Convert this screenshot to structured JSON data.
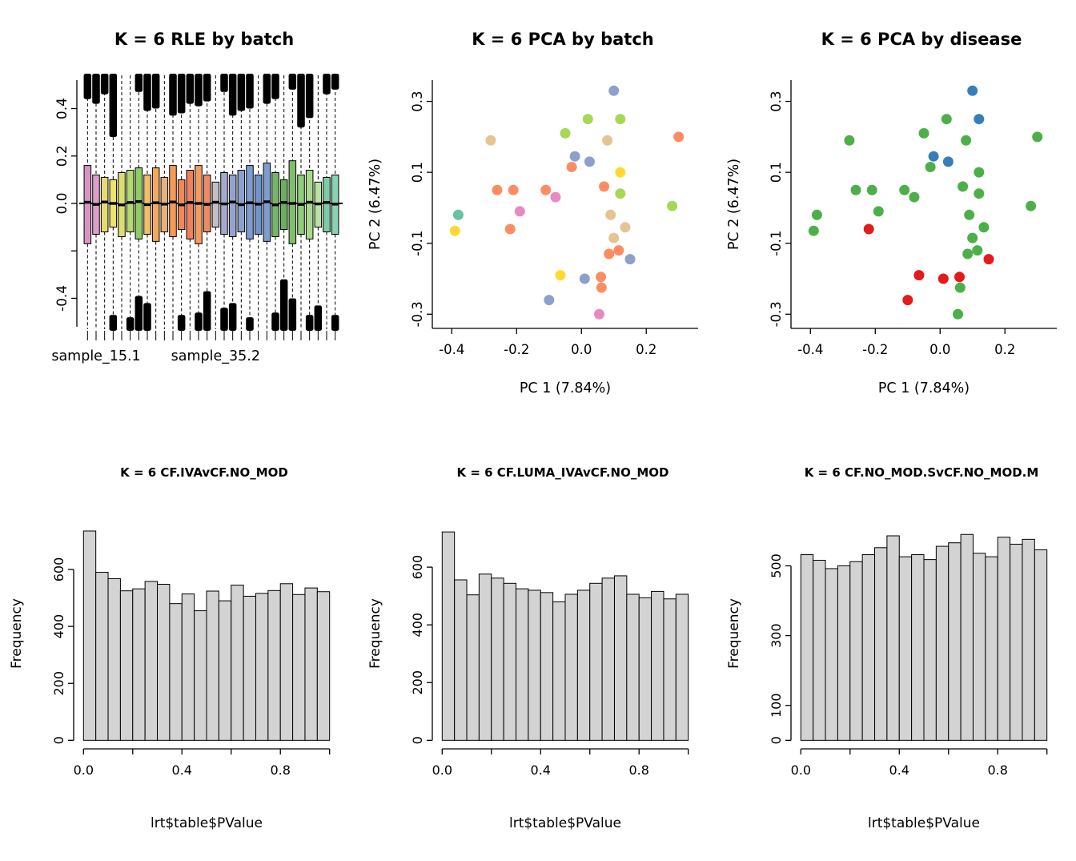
{
  "page_background": "#ffffff",
  "chart_data": [
    {
      "type": "boxplot",
      "title": "K = 6 RLE by batch",
      "ylabel": "",
      "ylim": [
        -0.52,
        0.52
      ],
      "y_ticks": [
        {
          "v": -0.4,
          "l": "-0.4"
        },
        {
          "v": -0.2,
          "l": ""
        },
        {
          "v": 0.0,
          "l": "0.0"
        },
        {
          "v": 0.2,
          "l": "0.2"
        },
        {
          "v": 0.4,
          "l": "0.4"
        }
      ],
      "x_labels": [
        {
          "i": 1,
          "t": "sample_15.1"
        },
        {
          "i": 15,
          "t": "sample_35.2"
        }
      ],
      "zero_line": true,
      "boxes": [
        {
          "q1": -0.17,
          "q3": 0.16,
          "m": 0.005,
          "c": "#D795C3",
          "ot": 0.08,
          "ob": 0
        },
        {
          "q1": -0.13,
          "q3": 0.12,
          "m": -0.004,
          "c": "#DB9FC9",
          "ot": 0.1,
          "ob": 0
        },
        {
          "q1": -0.12,
          "q3": 0.11,
          "m": 0.006,
          "c": "#E4DB72",
          "ot": 0.06,
          "ob": 0
        },
        {
          "q1": -0.1,
          "q3": 0.1,
          "m": 0.0,
          "c": "#EDE26B",
          "ot": 0.24,
          "ob": 0.05
        },
        {
          "q1": -0.14,
          "q3": 0.13,
          "m": -0.006,
          "c": "#DCDE6E",
          "ot": 0,
          "ob": 0
        },
        {
          "q1": -0.12,
          "q3": 0.14,
          "m": 0.004,
          "c": "#B5D96C",
          "ot": 0,
          "ob": 0.04
        },
        {
          "q1": -0.15,
          "q3": 0.15,
          "m": 0.008,
          "c": "#8FCD63",
          "ot": 0.05,
          "ob": 0.13
        },
        {
          "q1": -0.13,
          "q3": 0.12,
          "m": -0.005,
          "c": "#EFC06A",
          "ot": 0.13,
          "ob": 0.1
        },
        {
          "q1": -0.16,
          "q3": 0.15,
          "m": 0.003,
          "c": "#F2A95C",
          "ot": 0.12,
          "ob": 0
        },
        {
          "q1": -0.12,
          "q3": 0.11,
          "m": -0.003,
          "c": "#E8B07C",
          "ot": 0,
          "ob": 0
        },
        {
          "q1": -0.14,
          "q3": 0.16,
          "m": 0.006,
          "c": "#F59B55",
          "ot": 0.15,
          "ob": 0
        },
        {
          "q1": -0.11,
          "q3": 0.1,
          "m": -0.006,
          "c": "#F4875A",
          "ot": 0.14,
          "ob": 0.05
        },
        {
          "q1": -0.15,
          "q3": 0.14,
          "m": 0.004,
          "c": "#F07F5C",
          "ot": 0.1,
          "ob": 0
        },
        {
          "q1": -0.17,
          "q3": 0.16,
          "m": 0.0,
          "c": "#F59B60",
          "ot": 0.11,
          "ob": 0.06
        },
        {
          "q1": -0.12,
          "q3": 0.12,
          "m": -0.004,
          "c": "#EF8A64",
          "ot": 0.09,
          "ob": 0.15
        },
        {
          "q1": -0.1,
          "q3": 0.09,
          "m": 0.005,
          "c": "#C2BFC7",
          "ot": 0,
          "ob": 0
        },
        {
          "q1": -0.13,
          "q3": 0.13,
          "m": -0.002,
          "c": "#A3AACB",
          "ot": 0.05,
          "ob": 0.08
        },
        {
          "q1": -0.14,
          "q3": 0.12,
          "m": 0.006,
          "c": "#95A3CC",
          "ot": 0.15,
          "ob": 0.1
        },
        {
          "q1": -0.12,
          "q3": 0.14,
          "m": -0.005,
          "c": "#8AA0CF",
          "ot": 0.13,
          "ob": 0
        },
        {
          "q1": -0.15,
          "q3": 0.16,
          "m": 0.003,
          "c": "#7C9CD2",
          "ot": 0.12,
          "ob": 0.04
        },
        {
          "q1": -0.13,
          "q3": 0.12,
          "m": -0.003,
          "c": "#6E94CE",
          "ot": 0,
          "ob": 0
        },
        {
          "q1": -0.16,
          "q3": 0.17,
          "m": 0.007,
          "c": "#7C9CD2",
          "ot": 0.1,
          "ob": 0
        },
        {
          "q1": -0.14,
          "q3": 0.13,
          "m": -0.006,
          "c": "#77B56B",
          "ot": 0.08,
          "ob": 0.06
        },
        {
          "q1": -0.11,
          "q3": 0.1,
          "m": 0.004,
          "c": "#6BAE5F",
          "ot": 0,
          "ob": 0.2
        },
        {
          "q1": -0.17,
          "q3": 0.18,
          "m": 0.0,
          "c": "#7FBE6C",
          "ot": 0.04,
          "ob": 0.12
        },
        {
          "q1": -0.13,
          "q3": 0.12,
          "m": -0.004,
          "c": "#8FCD7A",
          "ot": 0.2,
          "ob": 0
        },
        {
          "q1": -0.15,
          "q3": 0.14,
          "m": 0.005,
          "c": "#A8D98C",
          "ot": 0.16,
          "ob": 0.05
        },
        {
          "q1": -0.1,
          "q3": 0.09,
          "m": -0.002,
          "c": "#B9E3A0",
          "ot": 0,
          "ob": 0.09
        },
        {
          "q1": -0.12,
          "q3": 0.11,
          "m": 0.004,
          "c": "#7ECBA8",
          "ot": 0.06,
          "ob": 0
        },
        {
          "q1": -0.13,
          "q3": 0.12,
          "m": -0.003,
          "c": "#8AD2B3",
          "ot": 0.04,
          "ob": 0.05
        }
      ]
    },
    {
      "type": "scatter",
      "title": "K = 6 PCA by batch",
      "xlabel": "PC 1 (7.84%)",
      "ylabel": "PC 2 (6.47%)",
      "xlim": [
        -0.46,
        0.36
      ],
      "ylim": [
        -0.34,
        0.36
      ],
      "x_ticks": [
        {
          "v": -0.4,
          "l": "-0.4"
        },
        {
          "v": -0.2,
          "l": "-0.2"
        },
        {
          "v": 0.0,
          "l": "0.0"
        },
        {
          "v": 0.2,
          "l": "0.2"
        }
      ],
      "y_ticks": [
        {
          "v": -0.3,
          "l": "-0.3"
        },
        {
          "v": -0.1,
          "l": "-0.1"
        },
        {
          "v": 0.1,
          "l": "0.1"
        },
        {
          "v": 0.3,
          "l": "0.3"
        }
      ],
      "points": [
        {
          "x": 0.1,
          "y": 0.33,
          "c": "#8DA0CB"
        },
        {
          "x": 0.02,
          "y": 0.25,
          "c": "#A6D854"
        },
        {
          "x": 0.12,
          "y": 0.25,
          "c": "#A6D854"
        },
        {
          "x": -0.05,
          "y": 0.21,
          "c": "#A6D854"
        },
        {
          "x": -0.28,
          "y": 0.19,
          "c": "#E5C494"
        },
        {
          "x": 0.3,
          "y": 0.2,
          "c": "#FC8D62"
        },
        {
          "x": 0.08,
          "y": 0.19,
          "c": "#E5C494"
        },
        {
          "x": -0.02,
          "y": 0.145,
          "c": "#8DA0CB"
        },
        {
          "x": 0.025,
          "y": 0.13,
          "c": "#8DA0CB"
        },
        {
          "x": 0.12,
          "y": 0.1,
          "c": "#FFD92F"
        },
        {
          "x": -0.03,
          "y": 0.115,
          "c": "#FC8D62"
        },
        {
          "x": -0.26,
          "y": 0.05,
          "c": "#FC8D62"
        },
        {
          "x": -0.21,
          "y": 0.05,
          "c": "#FC8D62"
        },
        {
          "x": -0.11,
          "y": 0.05,
          "c": "#FC8D62"
        },
        {
          "x": 0.07,
          "y": 0.06,
          "c": "#FC8D62"
        },
        {
          "x": 0.12,
          "y": 0.04,
          "c": "#A6D854"
        },
        {
          "x": -0.08,
          "y": 0.03,
          "c": "#E78AC3"
        },
        {
          "x": 0.28,
          "y": 0.005,
          "c": "#A6D854"
        },
        {
          "x": -0.38,
          "y": -0.02,
          "c": "#66C2A5"
        },
        {
          "x": -0.19,
          "y": -0.01,
          "c": "#E78AC3"
        },
        {
          "x": -0.39,
          "y": -0.065,
          "c": "#FFD92F"
        },
        {
          "x": -0.22,
          "y": -0.06,
          "c": "#FC8D62"
        },
        {
          "x": 0.09,
          "y": -0.02,
          "c": "#E5C494"
        },
        {
          "x": 0.135,
          "y": -0.055,
          "c": "#E5C494"
        },
        {
          "x": 0.1,
          "y": -0.085,
          "c": "#E5C494"
        },
        {
          "x": 0.085,
          "y": -0.13,
          "c": "#FC8D62"
        },
        {
          "x": 0.115,
          "y": -0.12,
          "c": "#FC8D62"
        },
        {
          "x": 0.15,
          "y": -0.145,
          "c": "#8DA0CB"
        },
        {
          "x": -0.065,
          "y": -0.19,
          "c": "#FFD92F"
        },
        {
          "x": 0.01,
          "y": -0.2,
          "c": "#8DA0CB"
        },
        {
          "x": 0.06,
          "y": -0.195,
          "c": "#FC8D62"
        },
        {
          "x": 0.062,
          "y": -0.225,
          "c": "#FC8D62"
        },
        {
          "x": -0.1,
          "y": -0.26,
          "c": "#8DA0CB"
        },
        {
          "x": 0.055,
          "y": -0.3,
          "c": "#E78AC3"
        }
      ]
    },
    {
      "type": "scatter",
      "title": "K = 6 PCA by disease",
      "xlabel": "PC 1 (7.84%)",
      "ylabel": "PC 2 (6.47%)",
      "xlim": [
        -0.46,
        0.36
      ],
      "ylim": [
        -0.34,
        0.36
      ],
      "x_ticks": [
        {
          "v": -0.4,
          "l": "-0.4"
        },
        {
          "v": -0.2,
          "l": "-0.2"
        },
        {
          "v": 0.0,
          "l": "0.0"
        },
        {
          "v": 0.2,
          "l": "0.2"
        }
      ],
      "y_ticks": [
        {
          "v": -0.3,
          "l": "-0.3"
        },
        {
          "v": -0.1,
          "l": "-0.1"
        },
        {
          "v": 0.1,
          "l": "0.1"
        },
        {
          "v": 0.3,
          "l": "0.3"
        }
      ],
      "points": [
        {
          "x": 0.1,
          "y": 0.33,
          "c": "#377EB8"
        },
        {
          "x": 0.02,
          "y": 0.25,
          "c": "#4DAF4A"
        },
        {
          "x": 0.12,
          "y": 0.25,
          "c": "#377EB8"
        },
        {
          "x": -0.05,
          "y": 0.21,
          "c": "#4DAF4A"
        },
        {
          "x": -0.28,
          "y": 0.19,
          "c": "#4DAF4A"
        },
        {
          "x": 0.3,
          "y": 0.2,
          "c": "#4DAF4A"
        },
        {
          "x": 0.08,
          "y": 0.19,
          "c": "#4DAF4A"
        },
        {
          "x": -0.02,
          "y": 0.145,
          "c": "#377EB8"
        },
        {
          "x": 0.025,
          "y": 0.13,
          "c": "#377EB8"
        },
        {
          "x": 0.12,
          "y": 0.1,
          "c": "#4DAF4A"
        },
        {
          "x": -0.03,
          "y": 0.115,
          "c": "#4DAF4A"
        },
        {
          "x": -0.26,
          "y": 0.05,
          "c": "#4DAF4A"
        },
        {
          "x": -0.21,
          "y": 0.05,
          "c": "#4DAF4A"
        },
        {
          "x": -0.11,
          "y": 0.05,
          "c": "#4DAF4A"
        },
        {
          "x": 0.07,
          "y": 0.06,
          "c": "#4DAF4A"
        },
        {
          "x": 0.12,
          "y": 0.04,
          "c": "#4DAF4A"
        },
        {
          "x": -0.08,
          "y": 0.03,
          "c": "#4DAF4A"
        },
        {
          "x": 0.28,
          "y": 0.005,
          "c": "#4DAF4A"
        },
        {
          "x": -0.38,
          "y": -0.02,
          "c": "#4DAF4A"
        },
        {
          "x": -0.19,
          "y": -0.01,
          "c": "#4DAF4A"
        },
        {
          "x": -0.39,
          "y": -0.065,
          "c": "#4DAF4A"
        },
        {
          "x": -0.22,
          "y": -0.06,
          "c": "#E41A1C"
        },
        {
          "x": 0.09,
          "y": -0.02,
          "c": "#4DAF4A"
        },
        {
          "x": 0.135,
          "y": -0.055,
          "c": "#4DAF4A"
        },
        {
          "x": 0.1,
          "y": -0.085,
          "c": "#4DAF4A"
        },
        {
          "x": 0.085,
          "y": -0.13,
          "c": "#4DAF4A"
        },
        {
          "x": 0.115,
          "y": -0.12,
          "c": "#4DAF4A"
        },
        {
          "x": 0.15,
          "y": -0.145,
          "c": "#E41A1C"
        },
        {
          "x": -0.065,
          "y": -0.19,
          "c": "#E41A1C"
        },
        {
          "x": 0.01,
          "y": -0.2,
          "c": "#E41A1C"
        },
        {
          "x": 0.06,
          "y": -0.195,
          "c": "#E41A1C"
        },
        {
          "x": 0.062,
          "y": -0.225,
          "c": "#4DAF4A"
        },
        {
          "x": -0.1,
          "y": -0.26,
          "c": "#E41A1C"
        },
        {
          "x": 0.055,
          "y": -0.3,
          "c": "#4DAF4A"
        }
      ]
    },
    {
      "type": "hist",
      "title": "K = 6 CF.IVAvCF.NO_MOD",
      "xlabel": "lrt$table$PValue",
      "ylabel": "Frequency",
      "bar_fill": "#D3D3D3",
      "bin_start": 0,
      "bin_width": 0.05,
      "ymax": 750,
      "values": [
        735,
        590,
        568,
        525,
        532,
        558,
        548,
        480,
        514,
        455,
        524,
        490,
        545,
        506,
        516,
        526,
        550,
        512,
        535,
        522
      ],
      "x_ticks": [
        {
          "v": 0.0,
          "l": "0.0"
        },
        {
          "v": 0.2,
          "l": ""
        },
        {
          "v": 0.4,
          "l": "0.4"
        },
        {
          "v": 0.6,
          "l": ""
        },
        {
          "v": 0.8,
          "l": "0.8"
        },
        {
          "v": 1.0,
          "l": ""
        }
      ],
      "y_ticks": [
        {
          "v": 0,
          "l": "0"
        },
        {
          "v": 200,
          "l": "200"
        },
        {
          "v": 400,
          "l": "400"
        },
        {
          "v": 600,
          "l": "600"
        }
      ]
    },
    {
      "type": "hist",
      "title": "K = 6 CF.LUMA_IVAvCF.NO_MOD",
      "xlabel": "lrt$table$PValue",
      "ylabel": "Frequency",
      "bar_fill": "#D3D3D3",
      "bin_start": 0,
      "bin_width": 0.05,
      "ymax": 740,
      "values": [
        722,
        556,
        504,
        576,
        562,
        544,
        525,
        520,
        512,
        480,
        506,
        520,
        544,
        562,
        570,
        506,
        494,
        516,
        490,
        506
      ],
      "x_ticks": [
        {
          "v": 0.0,
          "l": "0.0"
        },
        {
          "v": 0.2,
          "l": ""
        },
        {
          "v": 0.4,
          "l": "0.4"
        },
        {
          "v": 0.6,
          "l": ""
        },
        {
          "v": 0.8,
          "l": "0.8"
        },
        {
          "v": 1.0,
          "l": ""
        }
      ],
      "y_ticks": [
        {
          "v": 0,
          "l": "0"
        },
        {
          "v": 200,
          "l": "200"
        },
        {
          "v": 400,
          "l": "400"
        },
        {
          "v": 600,
          "l": "600"
        }
      ]
    },
    {
      "type": "hist",
      "title": "K = 6 CF.NO_MOD.SvCF.NO_MOD.M",
      "xlabel": "lrt$table$PValue",
      "ylabel": "Frequency",
      "bar_fill": "#D3D3D3",
      "bin_start": 0,
      "bin_width": 0.05,
      "ymax": 612,
      "values": [
        532,
        516,
        492,
        500,
        512,
        532,
        552,
        586,
        526,
        532,
        518,
        556,
        566,
        590,
        536,
        526,
        582,
        562,
        576,
        546
      ],
      "x_ticks": [
        {
          "v": 0.0,
          "l": "0.0"
        },
        {
          "v": 0.2,
          "l": ""
        },
        {
          "v": 0.4,
          "l": "0.4"
        },
        {
          "v": 0.6,
          "l": ""
        },
        {
          "v": 0.8,
          "l": "0.8"
        },
        {
          "v": 1.0,
          "l": ""
        }
      ],
      "y_ticks": [
        {
          "v": 0,
          "l": "0"
        },
        {
          "v": 100,
          "l": "100"
        },
        {
          "v": 300,
          "l": "300"
        },
        {
          "v": 500,
          "l": "500"
        }
      ]
    }
  ]
}
